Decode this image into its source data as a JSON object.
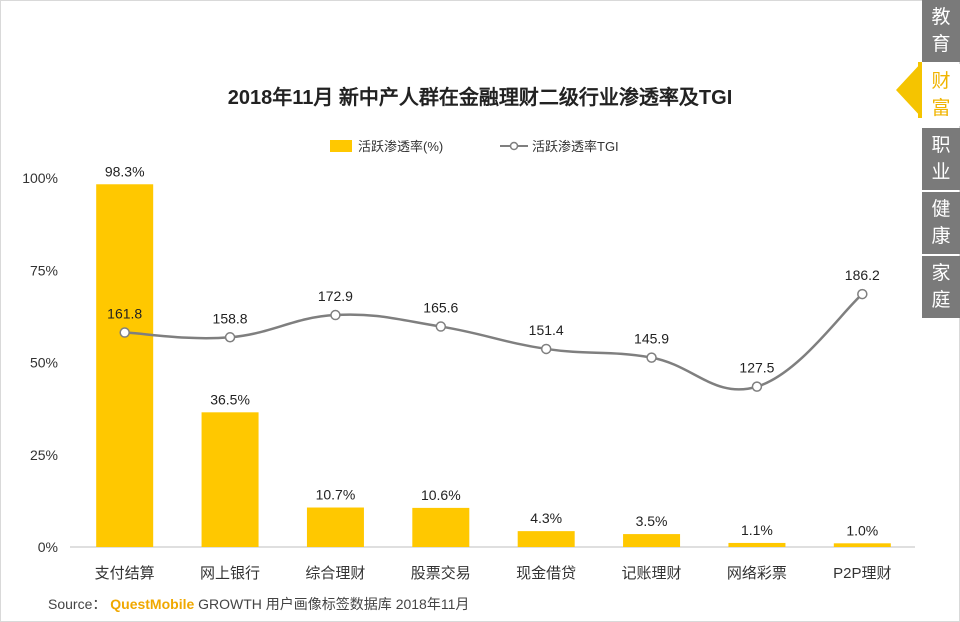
{
  "side_nav": {
    "items": [
      {
        "label": "教育",
        "chars": [
          "教",
          "育"
        ],
        "active": false
      },
      {
        "label": "财富",
        "chars": [
          "财",
          "富"
        ],
        "active": true
      },
      {
        "label": "职业",
        "chars": [
          "职",
          "业"
        ],
        "active": false
      },
      {
        "label": "健康",
        "chars": [
          "健",
          "康"
        ],
        "active": false
      },
      {
        "label": "家庭",
        "chars": [
          "家",
          "庭"
        ],
        "active": false
      }
    ]
  },
  "source": {
    "prefix": "Source：",
    "brand": "QuestMobile",
    "rest": "GROWTH 用户画像标签数据库 2018年11月"
  },
  "colors": {
    "bar": "#FFC800",
    "line": "#7f7f7f",
    "highlight_label": "#e00000"
  },
  "chart_data": {
    "type": "bar",
    "title": "2018年11月 新中产人群在金融理财二级行业渗透率及TGI",
    "categories": [
      "支付结算",
      "网上银行",
      "综合理财",
      "股票交易",
      "现金借贷",
      "记账理财",
      "网络彩票",
      "P2P理财"
    ],
    "series": [
      {
        "name": "活跃渗透率(%)",
        "kind": "bar",
        "axis": "left",
        "values": [
          98.3,
          36.5,
          10.7,
          10.6,
          4.3,
          3.5,
          1.1,
          1.0
        ],
        "labels": [
          "98.3%",
          "36.5%",
          "10.7%",
          "10.6%",
          "4.3%",
          "3.5%",
          "1.1%",
          "1.0%"
        ]
      },
      {
        "name": "活跃渗透率TGI",
        "kind": "line",
        "axis": "right-hidden",
        "values": [
          161.8,
          158.8,
          172.9,
          165.6,
          151.4,
          145.9,
          127.5,
          186.2
        ],
        "labels": [
          "161.8",
          "158.8",
          "172.9",
          "165.6",
          "151.4",
          "145.9",
          "127.5",
          "186.2"
        ],
        "highlight_index": 7
      }
    ],
    "y_ticks": [
      "0%",
      "25%",
      "50%",
      "75%",
      "100%"
    ],
    "ylim": [
      0,
      100
    ],
    "legend_position": "top-center"
  }
}
